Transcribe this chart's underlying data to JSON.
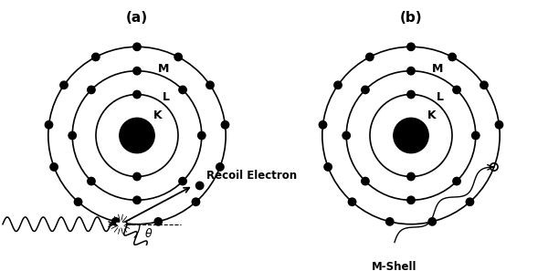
{
  "bg_color": "#ffffff",
  "fig_width": 6.0,
  "fig_height": 2.97,
  "dpi": 100,
  "label_a": "(a)",
  "label_b": "(b)",
  "title_fontsize": 11,
  "shell_label_fontsize": 9,
  "annotation_fontsize": 8.5,
  "nucleus_r": 0.32,
  "shell_K_r": 0.75,
  "shell_L_r": 1.18,
  "shell_M_r": 1.62,
  "electrons_K": 2,
  "electrons_L": 8,
  "electrons_M": 13,
  "electron_r": 0.07,
  "xlim": [
    -2.5,
    2.5
  ],
  "ylim": [
    -2.0,
    2.0
  ]
}
